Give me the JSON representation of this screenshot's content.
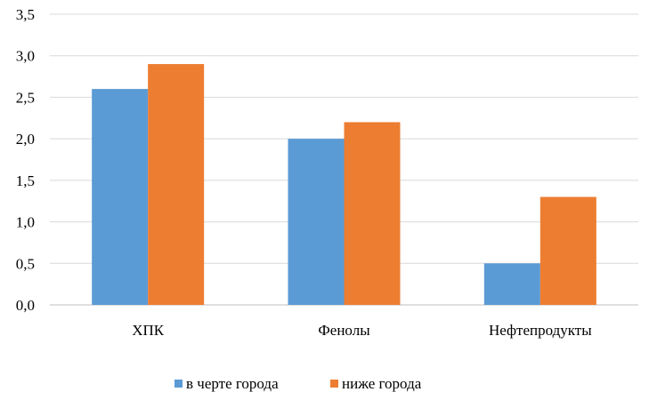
{
  "chart_data": {
    "type": "bar",
    "categories": [
      "ХПК",
      "Фенолы",
      "Нефтепродукты"
    ],
    "series": [
      {
        "name": "в черте города",
        "values": [
          2.6,
          2.0,
          0.5
        ],
        "color": "#5B9BD5"
      },
      {
        "name": "ниже города",
        "values": [
          2.9,
          2.2,
          1.3
        ],
        "color": "#ED7D31"
      }
    ],
    "ylim": [
      0,
      3.5
    ],
    "yticks": [
      "0,0",
      "0,5",
      "1,0",
      "1,5",
      "2,0",
      "2,5",
      "3,0",
      "3,5"
    ],
    "grid": true,
    "legend_position": "bottom"
  }
}
